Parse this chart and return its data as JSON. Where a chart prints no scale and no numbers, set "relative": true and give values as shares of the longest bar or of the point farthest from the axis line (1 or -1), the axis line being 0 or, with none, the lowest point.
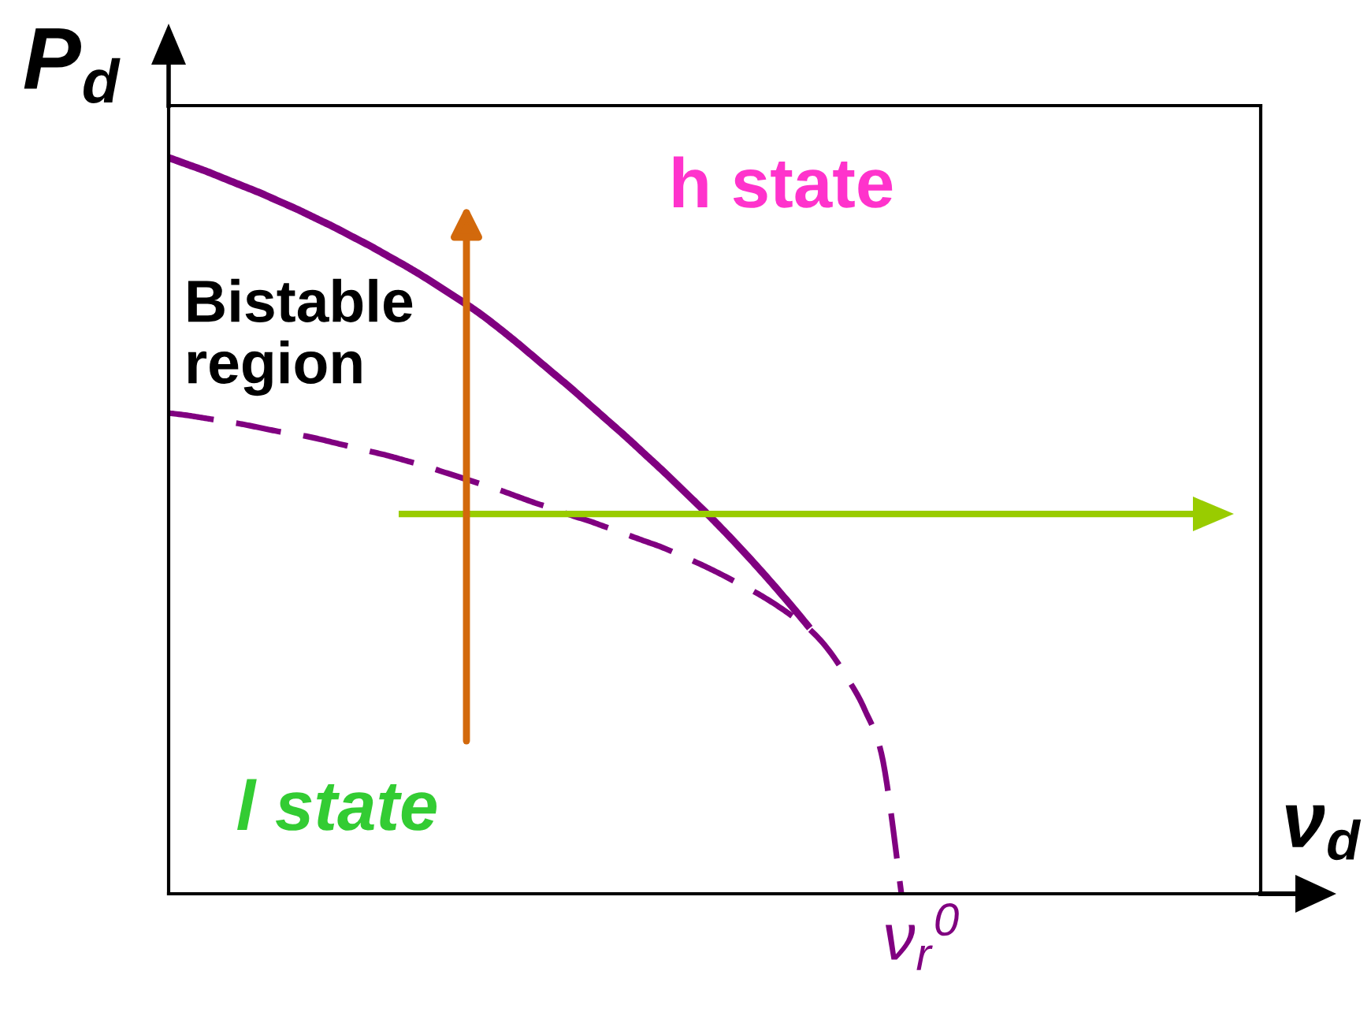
{
  "chart_data": {
    "type": "line",
    "relative": true,
    "xlabel": "ν$_{d}$",
    "ylabel": "P$_{d}$",
    "categories": [
      null,
      null,
      null,
      null,
      null,
      null,
      null,
      null,
      null,
      null,
      null,
      null,
      null,
      null,
      null,
      null,
      null,
      null,
      null,
      null,
      null,
      null,
      null,
      null,
      null,
      null,
      null,
      null,
      null,
      null,
      null,
      null,
      null,
      null,
      null,
      null,
      null,
      null,
      null,
      null,
      null
    ],
    "annotations": [
      "h state",
      "Bistable\nregion",
      "l state",
      "ν$_{r}$$^{0}$"
    ],
    "ref_lines": [
      {
        "axis": "y",
        "value": 0.516,
        "color": "#99cc00"
      }
    ],
    "series": [
      {
        "color": "#800080",
        "line_style": "solid",
        "values": [
          1.0,
          0.991,
          0.982,
          0.972,
          0.962,
          0.952,
          0.941,
          0.93,
          0.918,
          0.906,
          0.893,
          0.88,
          0.866,
          0.852,
          0.837,
          0.821,
          0.805,
          0.788,
          0.769,
          0.749,
          0.728,
          0.707,
          0.686,
          0.664,
          0.642,
          0.62,
          0.597,
          0.574,
          0.55,
          0.526,
          0.501,
          0.475,
          0.448,
          0.42,
          0.391,
          0.361,
          null,
          null,
          null,
          null,
          null
        ]
      },
      {
        "color": "#800080",
        "line_style": "dashed",
        "values": [
          0.653,
          0.65,
          0.646,
          0.642,
          0.638,
          0.633,
          0.628,
          0.624,
          0.619,
          0.613,
          0.607,
          0.601,
          0.595,
          0.588,
          0.581,
          0.573,
          0.565,
          0.557,
          0.549,
          0.54,
          0.531,
          0.523,
          0.514,
          0.506,
          0.497,
          0.488,
          0.479,
          0.47,
          0.459,
          0.448,
          0.436,
          0.423,
          0.41,
          0.395,
          0.378,
          0.359,
          0.332,
          0.295,
          0.25,
          0.18,
          0
        ]
      }
    ]
  }
}
